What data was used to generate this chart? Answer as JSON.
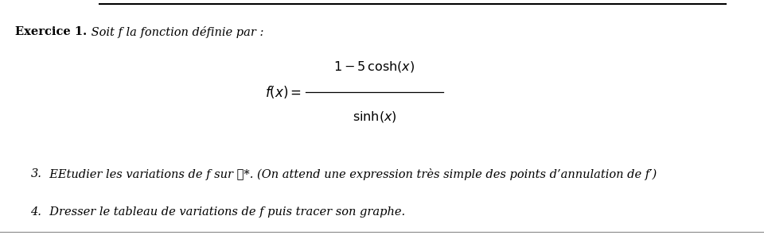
{
  "background_color": "#ffffff",
  "top_line_color": "#000000",
  "bottom_line_color": "#888888",
  "exercice_bold": "Exercice 1.",
  "exercice_italic": " Soit f la fonction définie par :",
  "item3_number": "3.",
  "item3_text": "  EEtudier les variations de f sur ℝ*. (On attend une expression très simple des points d’annulation de f′)",
  "item4_number": "4.",
  "item4_text": "  Dresser le tableau de variations de f puis tracer son graphe.",
  "fig_width": 9.6,
  "fig_height": 3.01,
  "dpi": 100
}
